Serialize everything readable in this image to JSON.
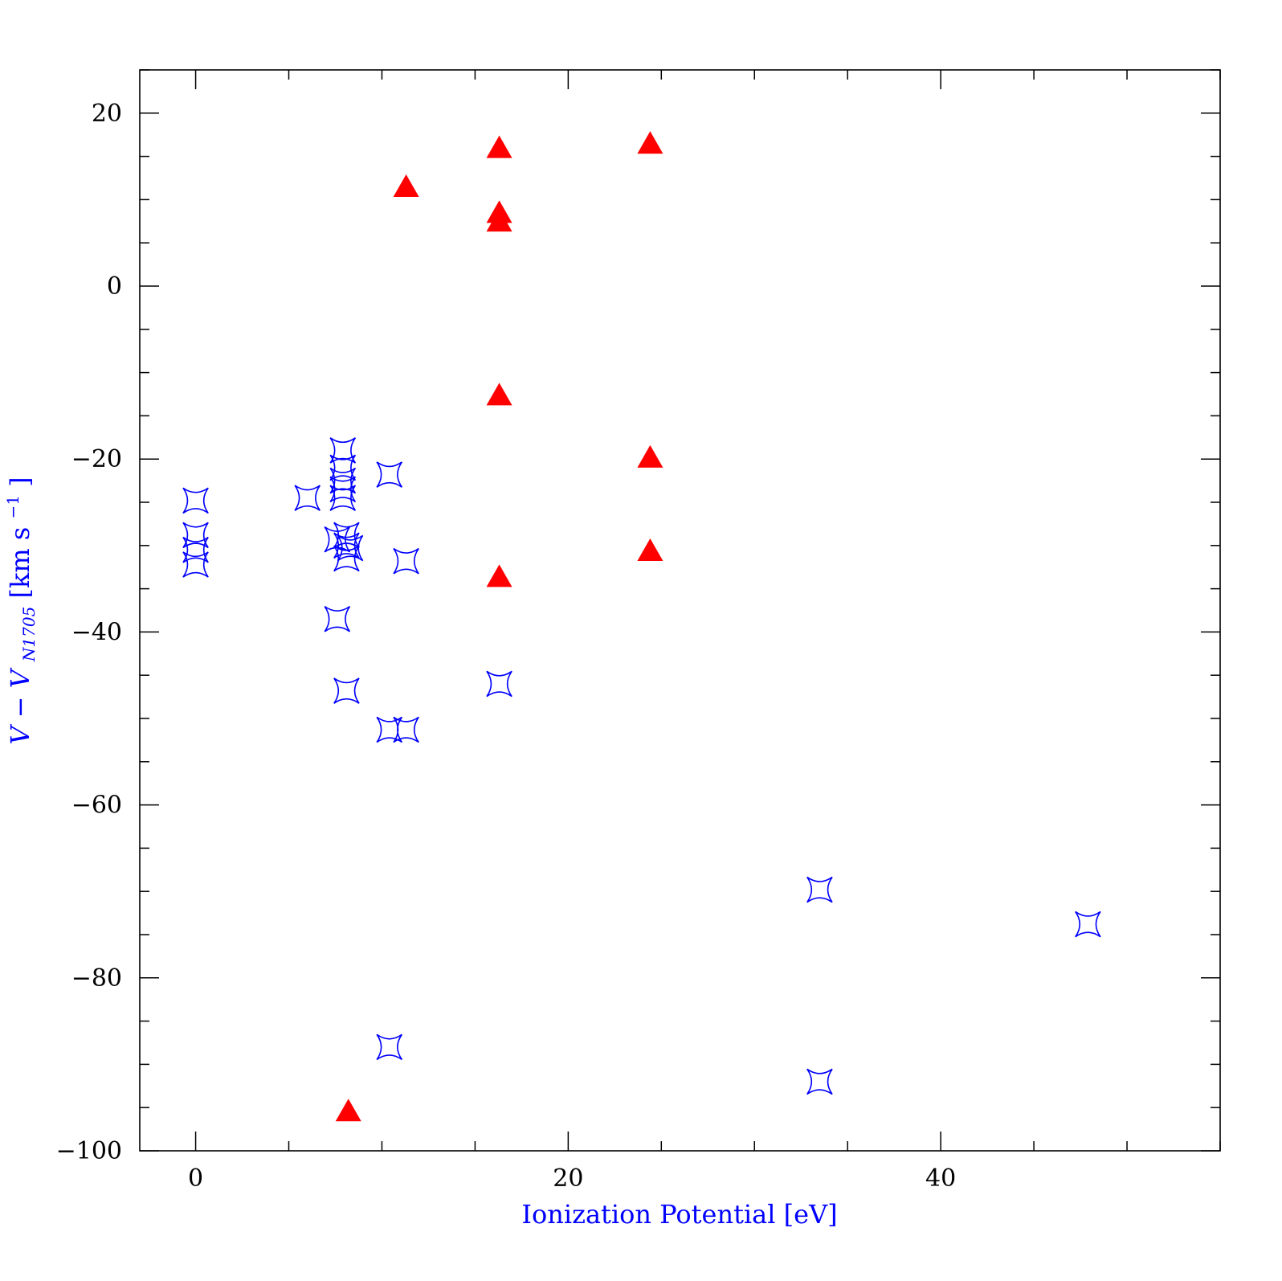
{
  "chart_data": {
    "type": "scatter",
    "title": "",
    "xlabel": "Ionization Potential [eV]",
    "ylabel": {
      "v": "V",
      "minus": " − ",
      "vsub_main": "V",
      "vsub_sub": "N1705",
      "units_open": " [km s",
      "units_exp": "−1",
      "units_close": "]"
    },
    "xlim": [
      -3,
      55
    ],
    "ylim": [
      -100,
      25
    ],
    "x_ticks": [
      0,
      20,
      40
    ],
    "x_tick_labels": [
      "0",
      "20",
      "40"
    ],
    "x_minor_step": 5,
    "y_ticks": [
      -100,
      -80,
      -60,
      -40,
      -20,
      0,
      20
    ],
    "y_tick_labels": [
      "−100",
      "−80",
      "−60",
      "−40",
      "−20",
      "0",
      "20"
    ],
    "y_minor_step": 5,
    "grid": false,
    "colors": {
      "blue": "#0000ff",
      "red": "#ff0000",
      "axes": "#000000"
    },
    "series": [
      {
        "marker": "four-point-star",
        "color": "#0000ff",
        "points": [
          [
            0,
            -24.8
          ],
          [
            0,
            -28.8
          ],
          [
            0,
            -30.5
          ],
          [
            0,
            -32.2
          ],
          [
            6.0,
            -24.5
          ],
          [
            7.9,
            -19.0
          ],
          [
            7.9,
            -21.0
          ],
          [
            7.9,
            -22.5
          ],
          [
            7.9,
            -23.5
          ],
          [
            7.9,
            -24.5
          ],
          [
            7.6,
            -29.3
          ],
          [
            8.1,
            -28.8
          ],
          [
            8.1,
            -30.0
          ],
          [
            8.3,
            -30.3
          ],
          [
            8.1,
            -31.5
          ],
          [
            7.6,
            -38.5
          ],
          [
            8.1,
            -46.8
          ],
          [
            10.4,
            -21.8
          ],
          [
            11.3,
            -31.8
          ],
          [
            10.4,
            -51.3
          ],
          [
            11.3,
            -51.3
          ],
          [
            16.3,
            -46.0
          ],
          [
            10.4,
            -88.0
          ],
          [
            33.5,
            -69.8
          ],
          [
            33.5,
            -92.0
          ],
          [
            47.9,
            -73.8
          ]
        ]
      },
      {
        "marker": "filled-triangle",
        "color": "#ff0000",
        "points": [
          [
            11.3,
            11.3
          ],
          [
            16.3,
            15.8
          ],
          [
            16.3,
            8.3
          ],
          [
            16.3,
            7.3
          ],
          [
            16.3,
            -12.8
          ],
          [
            16.3,
            -33.8
          ],
          [
            24.4,
            16.3
          ],
          [
            24.4,
            -20.0
          ],
          [
            24.4,
            -30.8
          ],
          [
            8.2,
            -95.6
          ]
        ]
      }
    ]
  }
}
